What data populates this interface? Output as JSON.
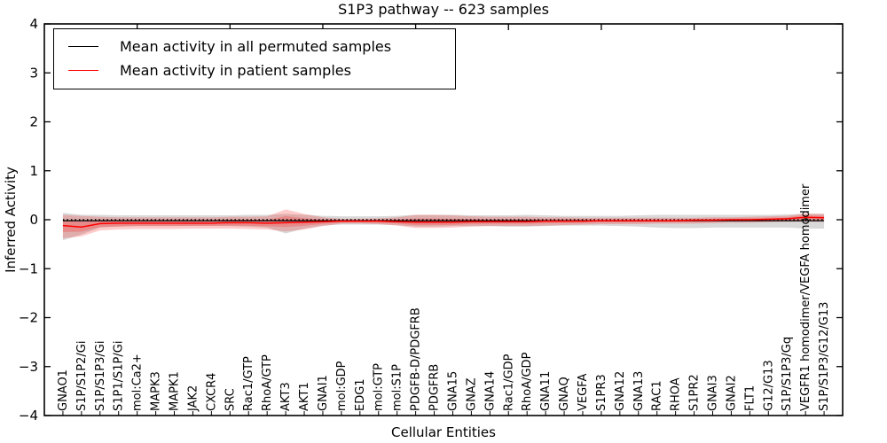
{
  "title": "S1P3 pathway -- 623 samples",
  "legend": {
    "items": [
      {
        "label": "Mean activity in all permuted samples",
        "color": "#000000"
      },
      {
        "label": "Mean activity in patient samples",
        "color": "#ff0000"
      }
    ]
  },
  "chart_data": {
    "type": "line",
    "title": "S1P3 pathway -- 623 samples",
    "xlabel": "Cellular Entities",
    "ylabel": "Inferred Activity",
    "ylim": [
      -4,
      4
    ],
    "yticks": [
      4,
      3,
      2,
      1,
      0,
      -1,
      -2,
      -3,
      -4
    ],
    "top_axis_major_ticks": [
      5,
      10,
      15,
      20,
      25,
      30,
      35,
      40
    ],
    "grid": false,
    "legend_position": "upper left",
    "zero_reference_line": true,
    "categories": [
      "GNAO1",
      "S1P/S1P2/Gi",
      "S1P/S1P3/Gi",
      "S1P1/S1P/Gi",
      "mol:Ca2+",
      "MAPK3",
      "MAPK1",
      "JAK2",
      "CXCR4",
      "SRC",
      "Rac1/GTP",
      "RhoA/GTP",
      "AKT3",
      "AKT1",
      "GNAI1",
      "mol:GDP",
      "EDG1",
      "mol:GTP",
      "mol:S1P",
      "PDGFB-D/PDGFRB",
      "PDGFRB",
      "GNA15",
      "GNAZ",
      "GNA14",
      "Rac1/GDP",
      "RhoA/GDP",
      "GNA11",
      "GNAQ",
      "VEGFA",
      "S1PR3",
      "GNA12",
      "GNA13",
      "RAC1",
      "RHOA",
      "S1PR2",
      "GNAI3",
      "GNAI2",
      "FLT1",
      "G12/G13",
      "S1P/S1P3/Gq",
      "VEGFR1 homodimer/VEGFA homodimer",
      "S1P/S1P3/G12/G13"
    ],
    "series": [
      {
        "name": "Mean activity in all permuted samples",
        "color": "#000000",
        "values": [
          -0.02,
          -0.02,
          -0.02,
          -0.02,
          -0.02,
          -0.02,
          -0.02,
          -0.02,
          -0.02,
          -0.02,
          -0.02,
          -0.02,
          -0.02,
          -0.02,
          -0.02,
          -0.02,
          -0.02,
          -0.02,
          -0.02,
          -0.02,
          -0.02,
          -0.02,
          -0.02,
          -0.02,
          -0.02,
          -0.02,
          -0.02,
          -0.02,
          -0.02,
          -0.02,
          -0.02,
          -0.02,
          -0.02,
          -0.02,
          -0.02,
          -0.02,
          -0.02,
          -0.02,
          -0.02,
          -0.02,
          -0.02,
          -0.02
        ]
      },
      {
        "name": "Mean activity in patient samples",
        "color": "#ff0000",
        "values": [
          -0.12,
          -0.15,
          -0.08,
          -0.07,
          -0.07,
          -0.07,
          -0.07,
          -0.07,
          -0.07,
          -0.06,
          -0.06,
          -0.07,
          -0.06,
          -0.05,
          -0.04,
          -0.03,
          -0.03,
          -0.03,
          -0.04,
          -0.05,
          -0.05,
          -0.05,
          -0.04,
          -0.04,
          -0.04,
          -0.04,
          -0.03,
          -0.03,
          -0.03,
          -0.02,
          -0.02,
          -0.02,
          -0.02,
          -0.02,
          -0.01,
          -0.01,
          0,
          0,
          0.01,
          0.02,
          0.05,
          0.04
        ]
      }
    ],
    "bands": [
      {
        "name": "permuted-samples-spread",
        "color": "rgba(130,130,130,0.30)",
        "upper": [
          0.14,
          0.1,
          0.1,
          0.09,
          0.09,
          0.09,
          0.09,
          0.09,
          0.09,
          0.09,
          0.1,
          0.1,
          0.12,
          0.1,
          0.08,
          0.07,
          0.07,
          0.07,
          0.08,
          0.1,
          0.1,
          0.1,
          0.09,
          0.09,
          0.09,
          0.1,
          0.09,
          0.08,
          0.08,
          0.08,
          0.08,
          0.09,
          0.1,
          0.1,
          0.1,
          0.1,
          0.1,
          0.1,
          0.1,
          0.11,
          0.12,
          0.12
        ],
        "lower": [
          -0.42,
          -0.3,
          -0.16,
          -0.14,
          -0.13,
          -0.13,
          -0.13,
          -0.13,
          -0.13,
          -0.13,
          -0.14,
          -0.16,
          -0.28,
          -0.18,
          -0.12,
          -0.1,
          -0.1,
          -0.1,
          -0.11,
          -0.14,
          -0.14,
          -0.13,
          -0.13,
          -0.13,
          -0.14,
          -0.14,
          -0.13,
          -0.12,
          -0.12,
          -0.12,
          -0.13,
          -0.14,
          -0.16,
          -0.17,
          -0.17,
          -0.16,
          -0.16,
          -0.16,
          -0.16,
          -0.16,
          -0.18,
          -0.18
        ]
      },
      {
        "name": "patient-samples-spread",
        "color": "rgba(255,0,0,0.20)",
        "upper": [
          0.1,
          0.08,
          0.06,
          0.05,
          0.05,
          0.05,
          0.05,
          0.05,
          0.05,
          0.06,
          0.06,
          0.07,
          0.21,
          0.12,
          0.05,
          0.02,
          0.02,
          0.03,
          0.05,
          0.1,
          0.1,
          0.09,
          0.07,
          0.06,
          0.06,
          0.06,
          0.05,
          0.05,
          0.04,
          0.04,
          0.04,
          0.04,
          0.04,
          0.04,
          0.04,
          0.05,
          0.05,
          0.06,
          0.07,
          0.08,
          0.13,
          0.12
        ],
        "lower": [
          -0.38,
          -0.34,
          -0.22,
          -0.2,
          -0.19,
          -0.19,
          -0.19,
          -0.18,
          -0.18,
          -0.18,
          -0.19,
          -0.2,
          -0.24,
          -0.2,
          -0.13,
          -0.08,
          -0.08,
          -0.09,
          -0.12,
          -0.17,
          -0.17,
          -0.16,
          -0.14,
          -0.13,
          -0.13,
          -0.13,
          -0.12,
          -0.11,
          -0.1,
          -0.09,
          -0.09,
          -0.09,
          -0.08,
          -0.08,
          -0.08,
          -0.07,
          -0.06,
          -0.06,
          -0.05,
          -0.04,
          -0.04,
          -0.04
        ]
      }
    ],
    "patient_band_inner_scale": 0.5
  }
}
